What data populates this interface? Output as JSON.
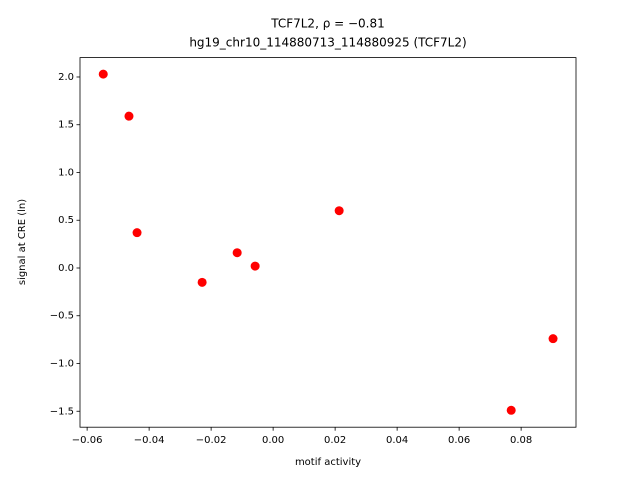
{
  "chart_data": {
    "type": "scatter",
    "title": [
      "TCF7L2, ρ = −0.81",
      "hg19_chr10_114880713_114880925 (TCF7L2)"
    ],
    "x_label": "motif activity",
    "y_label": "signal at CRE (ln)",
    "color": "#ff0000",
    "x": [
      -0.0548,
      -0.0465,
      -0.0439,
      -0.0229,
      -0.0116,
      -0.0058,
      0.0213,
      0.0768,
      0.0903
    ],
    "values": [
      2.03,
      1.59,
      0.37,
      -0.15,
      0.16,
      0.02,
      0.6,
      -1.49,
      -0.74
    ],
    "xlim": [
      -0.0623,
      0.0977
    ],
    "ylim": [
      -1.667,
      2.203
    ],
    "xticks": [
      {
        "value": -0.06,
        "label": "−0.06"
      },
      {
        "value": -0.04,
        "label": "−0.04"
      },
      {
        "value": -0.02,
        "label": "−0.02"
      },
      {
        "value": 0,
        "label": "0.00"
      },
      {
        "value": 0.02,
        "label": "0.02"
      },
      {
        "value": 0.04,
        "label": "0.04"
      },
      {
        "value": 0.06,
        "label": "0.06"
      },
      {
        "value": 0.08,
        "label": "0.08"
      }
    ],
    "yticks": [
      {
        "value": -1.5,
        "label": "−1.5"
      },
      {
        "value": -1,
        "label": "−1.0"
      },
      {
        "value": -0.5,
        "label": "−0.5"
      },
      {
        "value": 0,
        "label": "0.0"
      },
      {
        "value": 0.5,
        "label": "0.5"
      },
      {
        "value": 1,
        "label": "1.0"
      },
      {
        "value": 1.5,
        "label": "1.5"
      },
      {
        "value": 2,
        "label": "2.0"
      }
    ]
  }
}
